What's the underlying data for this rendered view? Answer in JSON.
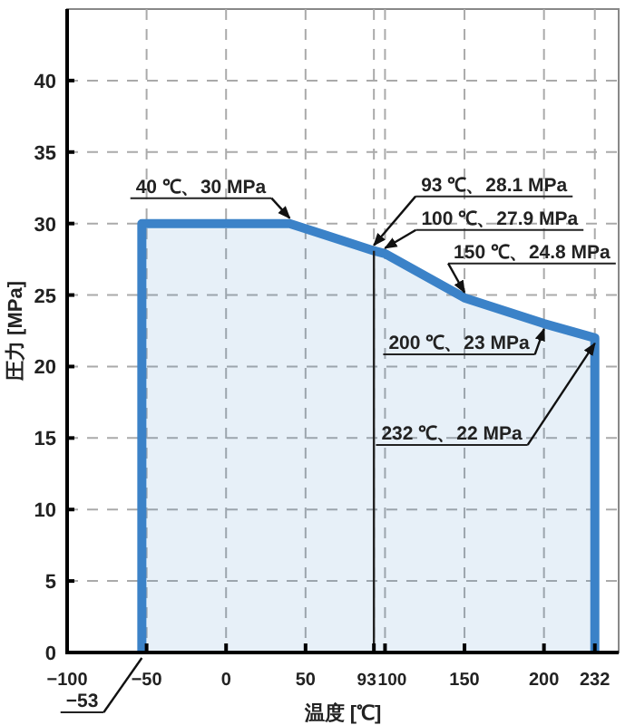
{
  "chart_data": {
    "type": "area",
    "xlabel": "温度 [℃]",
    "ylabel": "圧力 [MPa]",
    "x": [
      -53,
      -53,
      40,
      93,
      100,
      150,
      200,
      232,
      232
    ],
    "series": [
      {
        "color": "#3b82c8",
        "values": [
          0,
          30,
          30,
          28.1,
          27.9,
          24.8,
          23,
          22,
          0
        ]
      }
    ],
    "xlim": [
      -100,
      247
    ],
    "ylim": [
      0,
      45
    ],
    "xticks": [
      {
        "value": -100,
        "label": "−100"
      },
      {
        "value": -50,
        "label": "−50"
      },
      0,
      50,
      93,
      100,
      150,
      200,
      232
    ],
    "yticks": [
      0,
      5,
      10,
      15,
      20,
      25,
      30,
      35,
      40
    ],
    "grid": true,
    "ref_lines": [
      {
        "axis": "x",
        "value": 93,
        "color": "#222222"
      }
    ],
    "annotations": [
      {
        "text": "40 ℃、30 MPa",
        "x": 40,
        "y": 30
      },
      {
        "text": "93 ℃、28.1 MPa",
        "x": 93,
        "y": 28.1
      },
      {
        "text": "100 ℃、27.9 MPa",
        "x": 100,
        "y": 27.9
      },
      {
        "text": "150 ℃、24.8 MPa",
        "x": 150,
        "y": 24.8
      },
      {
        "text": "200 ℃、23 MPa",
        "x": 200,
        "y": 23
      },
      {
        "text": "232 ℃、22 MPa",
        "x": 232,
        "y": 22
      },
      {
        "text": "−53",
        "x": -53,
        "y": 0
      }
    ]
  }
}
